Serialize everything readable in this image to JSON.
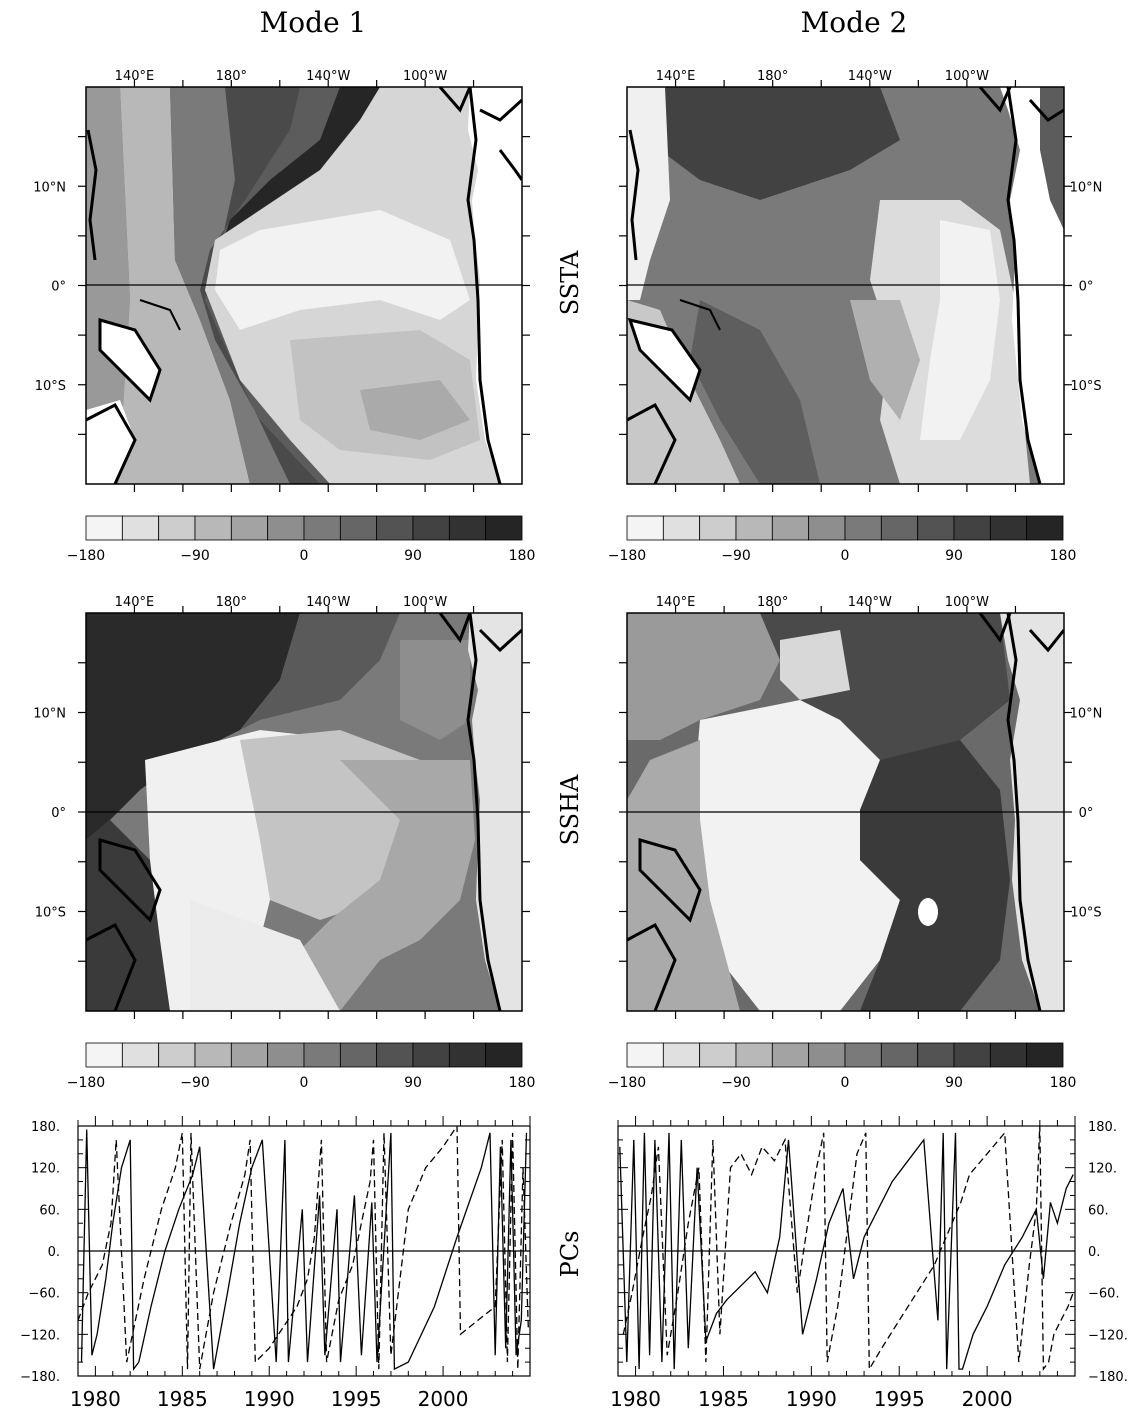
{
  "titles": {
    "mode1": "Mode 1",
    "mode2": "Mode 2"
  },
  "row_labels": {
    "ssta": "SSTA",
    "ssha": "SSHA",
    "pcs": "PCs"
  },
  "map_axes": {
    "lon_ticks": [
      "140°E",
      "180°",
      "140°W",
      "100°W"
    ],
    "lat_ticks": [
      "10°N",
      "0°",
      "10°S"
    ]
  },
  "colorbar": {
    "labels": [
      "-180",
      "-90",
      "0",
      "90",
      "180"
    ],
    "colors": [
      "#f4f4f4",
      "#e0e0e0",
      "#cdcdcd",
      "#b8b8b8",
      "#a3a3a3",
      "#8e8e8e",
      "#7a7a7a",
      "#666666",
      "#535353",
      "#424242",
      "#323232",
      "#252525"
    ]
  },
  "chart_data": [
    {
      "type": "heatmap",
      "panel": "Mode 1 SSTA",
      "title": "Mode 1",
      "ylabel": "SSTA",
      "x_ticks": [
        "140°E",
        "180°",
        "140°W",
        "100°W"
      ],
      "y_ticks": [
        "10°N",
        "0°",
        "10°S"
      ],
      "colorbar_range": [
        -180,
        180
      ],
      "colorbar_ticks": [
        -180,
        -90,
        0,
        90,
        180
      ]
    },
    {
      "type": "heatmap",
      "panel": "Mode 2 SSTA",
      "title": "Mode 2",
      "ylabel": "SSTA",
      "x_ticks": [
        "140°E",
        "180°",
        "140°W",
        "100°W"
      ],
      "y_ticks": [
        "10°N",
        "0°",
        "10°S"
      ],
      "colorbar_range": [
        -180,
        180
      ],
      "colorbar_ticks": [
        -180,
        -90,
        0,
        90,
        180
      ]
    },
    {
      "type": "heatmap",
      "panel": "Mode 1 SSHA",
      "ylabel": "SSHA",
      "x_ticks": [
        "140°E",
        "180°",
        "140°W",
        "100°W"
      ],
      "y_ticks": [
        "10°N",
        "0°",
        "10°S"
      ],
      "colorbar_range": [
        -180,
        180
      ],
      "colorbar_ticks": [
        -180,
        -90,
        0,
        90,
        180
      ]
    },
    {
      "type": "heatmap",
      "panel": "Mode 2 SSHA",
      "ylabel": "SSHA",
      "x_ticks": [
        "140°E",
        "180°",
        "140°W",
        "100°W"
      ],
      "y_ticks": [
        "10°N",
        "0°",
        "10°S"
      ],
      "colorbar_range": [
        -180,
        180
      ],
      "colorbar_ticks": [
        -180,
        -90,
        0,
        90,
        180
      ]
    },
    {
      "type": "line",
      "panel": "Mode 1 PCs",
      "ylabel": "PCs",
      "xlim": [
        1979,
        2005
      ],
      "ylim": [
        -180,
        180
      ],
      "x_tick_labels": [
        "1980",
        "1985",
        "1990",
        "1995",
        "2000"
      ],
      "y_tick_labels": [
        "180.",
        "120.",
        "60.",
        "0.",
        "-60.",
        "-120.",
        "-180."
      ],
      "series": [
        {
          "style": "solid",
          "x": [
            1979.2,
            1979.5,
            1979.8,
            1980.1,
            1980.6,
            1981.0,
            1981.5,
            1982.0,
            1982.2,
            1982.5,
            1983.2,
            1984.0,
            1984.8,
            1985.6,
            1986.0,
            1986.8,
            1987.6,
            1988.3,
            1989.0,
            1989.6,
            1990.4,
            1990.9,
            1991.1,
            1991.9,
            1992.2,
            1992.9,
            1993.2,
            1993.9,
            1994.1,
            1994.9,
            1995.3,
            1995.9,
            1996.2,
            1997.0,
            1997.2,
            1998.0,
            1999.5,
            2000.8,
            2002.2,
            2002.7,
            2003.0,
            2003.3,
            2003.6,
            2003.9,
            2004.2,
            2004.5,
            2004.8
          ],
          "y": [
            -160,
            175,
            -150,
            -120,
            -40,
            40,
            120,
            160,
            -170,
            -160,
            -80,
            0,
            60,
            110,
            150,
            -170,
            -60,
            40,
            120,
            160,
            -160,
            160,
            -160,
            60,
            -160,
            80,
            -150,
            60,
            -160,
            80,
            -150,
            70,
            -160,
            170,
            -170,
            -160,
            -80,
            20,
            120,
            170,
            -150,
            150,
            -140,
            160,
            -150,
            -100,
            170
          ]
        },
        {
          "style": "dashed",
          "x": [
            1979.0,
            1979.6,
            1980.4,
            1980.9,
            1981.2,
            1981.8,
            1982.8,
            1983.8,
            1984.6,
            1985.0,
            1985.3,
            1985.5,
            1986.0,
            1986.8,
            1987.8,
            1988.6,
            1988.9,
            1989.2,
            1990.0,
            1990.8,
            1991.6,
            1992.2,
            1992.6,
            1993.0,
            1993.3,
            1994.0,
            1994.8,
            1995.3,
            1995.8,
            1996.0,
            1996.3,
            1996.6,
            1997.0,
            1998.0,
            1999.0,
            2000.0,
            2000.8,
            2001.0,
            2002.0,
            2003.0,
            2003.4,
            2003.7,
            2004.0,
            2004.3,
            2004.6,
            2004.9
          ],
          "y": [
            -100,
            -60,
            -20,
            40,
            160,
            -160,
            -40,
            60,
            120,
            170,
            -170,
            170,
            -170,
            -60,
            40,
            110,
            160,
            -160,
            -140,
            -110,
            -80,
            -40,
            20,
            160,
            -160,
            -70,
            -20,
            40,
            100,
            160,
            -170,
            170,
            -150,
            60,
            120,
            150,
            180,
            -120,
            -100,
            -80,
            160,
            -160,
            170,
            -170,
            120,
            -110
          ]
        }
      ]
    },
    {
      "type": "line",
      "panel": "Mode 2 PCs",
      "ylabel": "PCs",
      "xlim": [
        1979,
        2005
      ],
      "ylim": [
        -180,
        180
      ],
      "x_tick_labels": [
        "1980",
        "1985",
        "1990",
        "1995",
        "2000"
      ],
      "y_tick_labels": [
        "180.",
        "120.",
        "60.",
        "0.",
        "-60.",
        "-120.",
        "-180."
      ],
      "series": [
        {
          "style": "solid",
          "x": [
            1979.1,
            1979.5,
            1979.9,
            1980.2,
            1980.5,
            1980.8,
            1981.1,
            1981.5,
            1981.9,
            1982.2,
            1982.6,
            1983.0,
            1983.5,
            1984.0,
            1984.6,
            1985.2,
            1986.0,
            1986.8,
            1987.5,
            1988.2,
            1988.7,
            1989.5,
            1990.3,
            1991.0,
            1991.8,
            1992.4,
            1993.0,
            1993.8,
            1994.6,
            1995.5,
            1996.4,
            1997.2,
            1997.5,
            1997.7,
            1998.2,
            1998.4,
            1998.6,
            1999.2,
            2000.0,
            2001.0,
            2002.0,
            2002.8,
            2003.2,
            2003.6,
            2004.0,
            2004.5,
            2004.9
          ],
          "y": [
            150,
            -160,
            160,
            -170,
            170,
            -150,
            160,
            -160,
            170,
            -170,
            160,
            -140,
            120,
            -130,
            -90,
            -70,
            -50,
            -30,
            -60,
            20,
            160,
            -120,
            -40,
            40,
            90,
            -40,
            20,
            60,
            100,
            130,
            160,
            -100,
            170,
            -170,
            170,
            -170,
            -170,
            -120,
            -80,
            -20,
            20,
            60,
            -40,
            70,
            40,
            90,
            110
          ]
        },
        {
          "style": "dashed",
          "x": [
            1979.3,
            1979.8,
            1980.4,
            1980.9,
            1981.3,
            1981.8,
            1982.4,
            1983.0,
            1983.6,
            1984.0,
            1984.4,
            1984.8,
            1985.4,
            1986.0,
            1986.6,
            1987.2,
            1987.9,
            1988.5,
            1989.2,
            1989.8,
            1990.3,
            1990.7,
            1990.9,
            1991.5,
            1992.1,
            1992.6,
            1993.1,
            1993.3,
            1994.0,
            1995.0,
            1996.0,
            1997.0,
            1998.0,
            1998.5,
            1999.0,
            2000.0,
            2001.0,
            2001.8,
            2002.4,
            2002.8,
            2003.0,
            2003.2,
            2003.5,
            2003.8,
            2004.2,
            2004.6,
            2004.9
          ],
          "y": [
            -120,
            -60,
            20,
            80,
            150,
            -150,
            -60,
            40,
            120,
            -160,
            160,
            -120,
            120,
            140,
            110,
            150,
            130,
            160,
            -60,
            40,
            120,
            170,
            -160,
            -80,
            40,
            140,
            170,
            -170,
            -140,
            -100,
            -60,
            -20,
            40,
            70,
            110,
            140,
            170,
            -160,
            -20,
            60,
            180,
            -170,
            -160,
            -120,
            -100,
            -80,
            -60
          ]
        }
      ]
    }
  ]
}
